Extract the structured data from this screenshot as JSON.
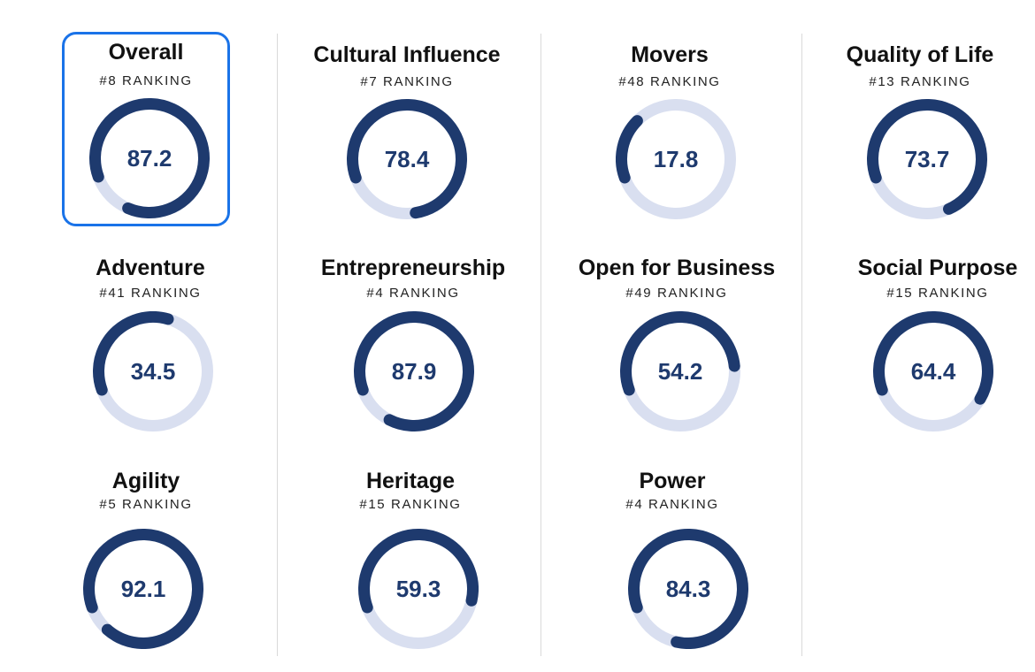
{
  "colors": {
    "ring_fill": "#1e3a6e",
    "ring_track": "#d9dff0",
    "selected_border": "#1a73e8"
  },
  "categories": [
    {
      "title": "Overall",
      "ranking": "#8 RANKING",
      "score": "87.2",
      "fraction": 0.87,
      "selected": true
    },
    {
      "title": "Cultural Influence",
      "ranking": "#7 RANKING",
      "score": "78.4",
      "fraction": 0.78
    },
    {
      "title": "Movers",
      "ranking": "#48 RANKING",
      "score": "17.8",
      "fraction": 0.18
    },
    {
      "title": "Quality of Life",
      "ranking": "#13 RANKING",
      "score": "73.7",
      "fraction": 0.74
    },
    {
      "title": "Adventure",
      "ranking": "#41 RANKING",
      "score": "34.5",
      "fraction": 0.35
    },
    {
      "title": "Entrepreneurship",
      "ranking": "#4 RANKING",
      "score": "87.9",
      "fraction": 0.88
    },
    {
      "title": "Open for Business",
      "ranking": "#49 RANKING",
      "score": "54.2",
      "fraction": 0.54
    },
    {
      "title": "Social Purpose",
      "ranking": "#15 RANKING",
      "score": "64.4",
      "fraction": 0.64
    },
    {
      "title": "Agility",
      "ranking": "#5 RANKING",
      "score": "92.1",
      "fraction": 0.92
    },
    {
      "title": "Heritage",
      "ranking": "#15 RANKING",
      "score": "59.3",
      "fraction": 0.59
    },
    {
      "title": "Power",
      "ranking": "#4 RANKING",
      "score": "84.3",
      "fraction": 0.84
    }
  ]
}
